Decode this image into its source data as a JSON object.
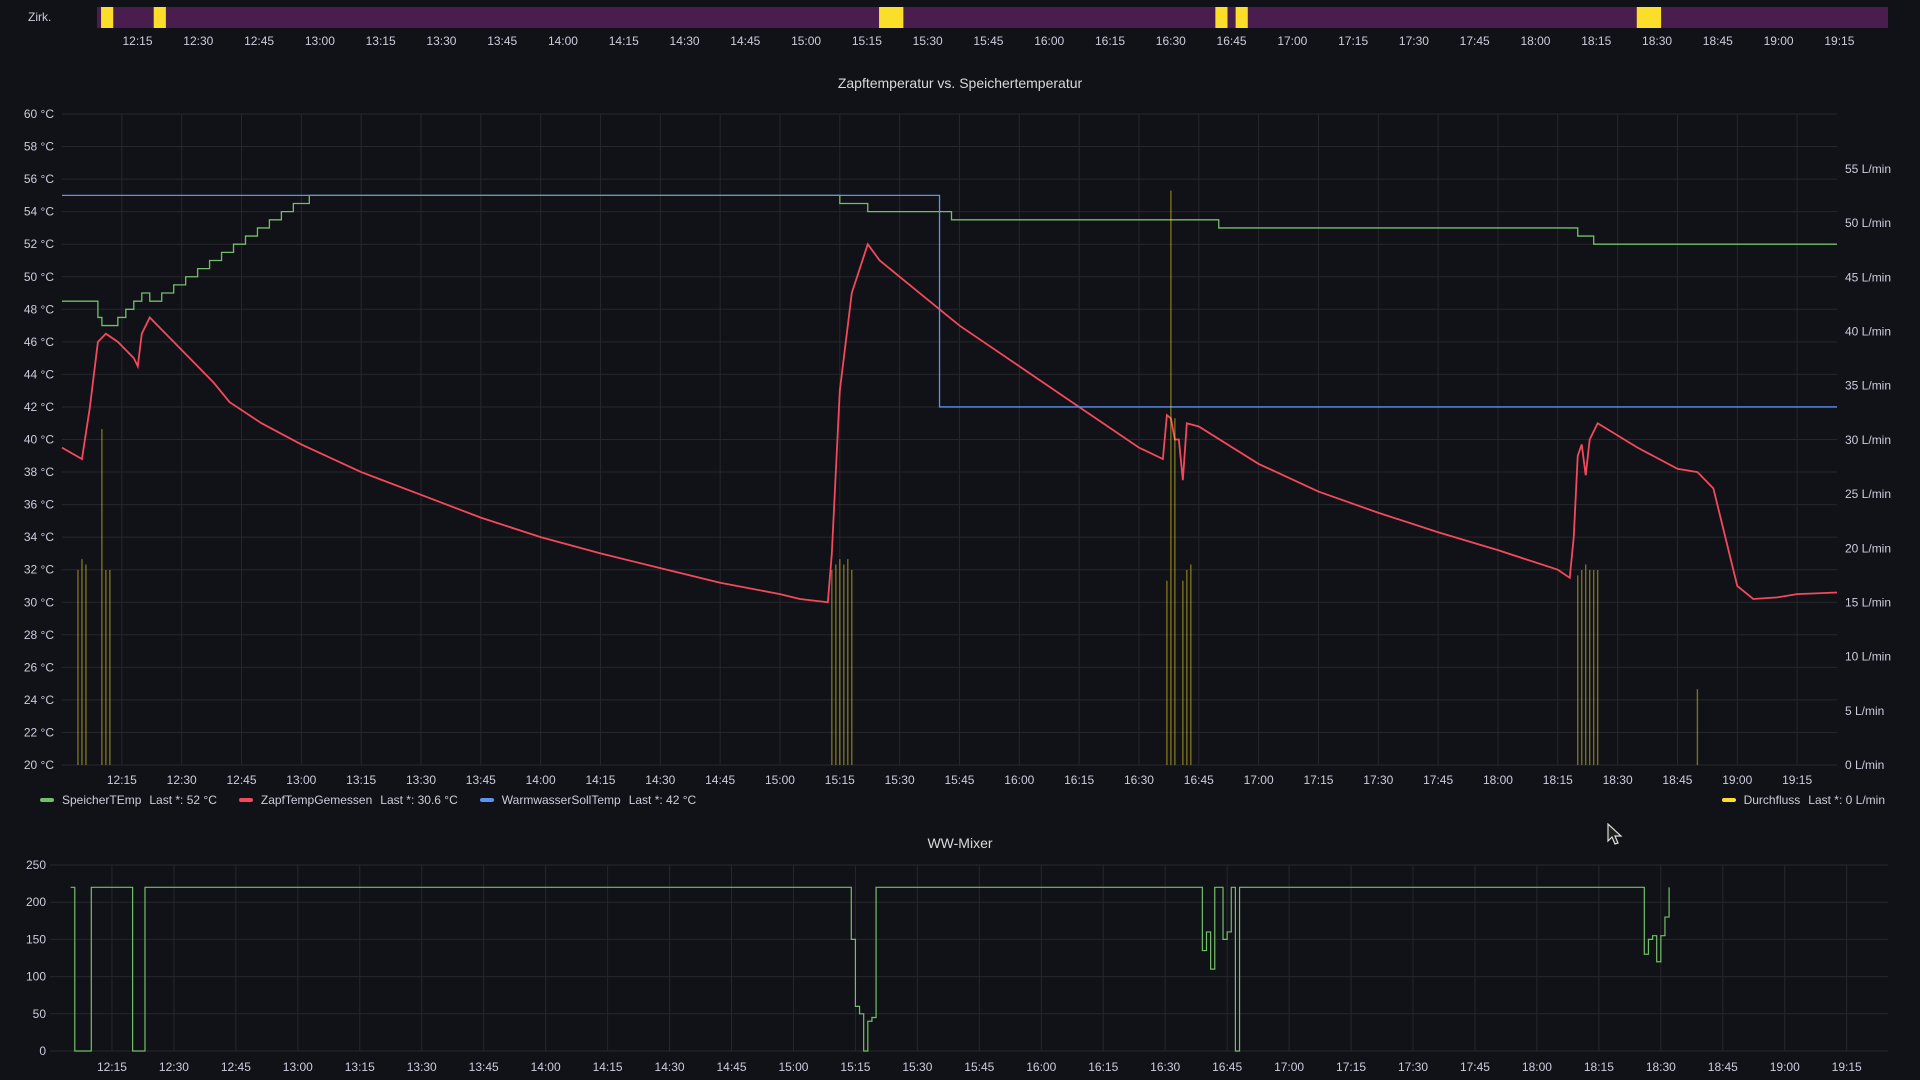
{
  "colors": {
    "background": "#111217",
    "grid": "#26272b",
    "axis_text": "#ccccdc",
    "green": "#73bf69",
    "red": "#f2495c",
    "blue": "#5794f2",
    "yellow": "#fade2a",
    "purple": "#4a1d4f"
  },
  "panels": {
    "state": {
      "label": "Zirk."
    },
    "temp": {
      "title": "Zapftemperatur vs. Speichertemperatur"
    },
    "mixer": {
      "title": "WW-Mixer"
    }
  },
  "legend": {
    "left": [
      {
        "name": "SpeicherTEmp",
        "last": "Last *: 52 °C",
        "color": "#73bf69"
      },
      {
        "name": "ZapfTempGemessen",
        "last": "Last *: 30.6 °C",
        "color": "#f2495c"
      },
      {
        "name": "WarmwasserSollTemp",
        "last": "Last *: 42 °C",
        "color": "#5794f2"
      }
    ],
    "right": {
      "name": "Durchfluss",
      "last": "Last *: 0 L/min",
      "color": "#fade2a"
    }
  },
  "chart_data": [
    {
      "type": "state-timeline",
      "label": "Zirk.",
      "x_ticks": [
        "12:15",
        "12:30",
        "12:45",
        "13:00",
        "13:15",
        "13:30",
        "13:45",
        "14:00",
        "14:15",
        "14:30",
        "14:45",
        "15:00",
        "15:15",
        "15:30",
        "15:45",
        "16:00",
        "16:15",
        "16:30",
        "16:45",
        "17:00",
        "17:15",
        "17:30",
        "17:45",
        "18:00",
        "18:15",
        "18:30",
        "18:45",
        "19:00",
        "19:15"
      ],
      "range": [
        "12:05",
        "19:27"
      ],
      "off_color": "#4a1d4f",
      "on_color": "#fade2a",
      "on_intervals": [
        [
          "12:06",
          "12:09"
        ],
        [
          "12:19",
          "12:22"
        ],
        [
          "15:18",
          "15:24"
        ],
        [
          "16:41",
          "16:44"
        ],
        [
          "16:46",
          "16:49"
        ],
        [
          "18:25",
          "18:31"
        ]
      ]
    },
    {
      "type": "line",
      "title": "Zapftemperatur vs. Speichertemperatur",
      "x_ticks": [
        "12:15",
        "12:30",
        "12:45",
        "13:00",
        "13:15",
        "13:30",
        "13:45",
        "14:00",
        "14:15",
        "14:30",
        "14:45",
        "15:00",
        "15:15",
        "15:30",
        "15:45",
        "16:00",
        "16:15",
        "16:30",
        "16:45",
        "17:00",
        "17:15",
        "17:30",
        "17:45",
        "18:00",
        "18:15",
        "18:30",
        "18:45",
        "19:00",
        "19:15"
      ],
      "x_range": [
        "12:00",
        "19:25"
      ],
      "y_left": {
        "min": 20,
        "max": 60,
        "step": 2,
        "unit": "°C"
      },
      "y_right": {
        "min": 0,
        "max": 55,
        "step": 5,
        "unit": "L/min"
      },
      "series": [
        {
          "name": "SpeicherTEmp",
          "color": "#73bf69",
          "axis": "left",
          "step": true,
          "points": [
            [
              "12:00",
              48.5
            ],
            [
              "12:08",
              48.5
            ],
            [
              "12:09",
              47.5
            ],
            [
              "12:10",
              47
            ],
            [
              "12:13",
              47
            ],
            [
              "12:14",
              47.5
            ],
            [
              "12:16",
              48
            ],
            [
              "12:18",
              48.5
            ],
            [
              "12:20",
              49
            ],
            [
              "12:22",
              48.5
            ],
            [
              "12:25",
              49
            ],
            [
              "12:28",
              49.5
            ],
            [
              "12:31",
              50
            ],
            [
              "12:34",
              50.5
            ],
            [
              "12:37",
              51
            ],
            [
              "12:40",
              51.5
            ],
            [
              "12:43",
              52
            ],
            [
              "12:46",
              52.5
            ],
            [
              "12:49",
              53
            ],
            [
              "12:52",
              53.5
            ],
            [
              "12:55",
              54
            ],
            [
              "12:58",
              54.5
            ],
            [
              "13:02",
              55
            ],
            [
              "15:14",
              55
            ],
            [
              "15:15",
              54.5
            ],
            [
              "15:22",
              54
            ],
            [
              "15:43",
              53.5
            ],
            [
              "16:50",
              53
            ],
            [
              "18:20",
              52.5
            ],
            [
              "18:24",
              52
            ],
            [
              "19:25",
              52
            ]
          ]
        },
        {
          "name": "ZapfTempGemessen",
          "color": "#f2495c",
          "axis": "left",
          "step": false,
          "points": [
            [
              "12:00",
              39.5
            ],
            [
              "12:05",
              38.8
            ],
            [
              "12:07",
              42
            ],
            [
              "12:09",
              46
            ],
            [
              "12:11",
              46.5
            ],
            [
              "12:14",
              46
            ],
            [
              "12:18",
              45
            ],
            [
              "12:19",
              44.5
            ],
            [
              "12:20",
              46.5
            ],
            [
              "12:22",
              47.5
            ],
            [
              "12:26",
              46.5
            ],
            [
              "12:32",
              45
            ],
            [
              "12:38",
              43.5
            ],
            [
              "12:42",
              42.3
            ],
            [
              "12:50",
              41
            ],
            [
              "13:00",
              39.7
            ],
            [
              "13:15",
              38
            ],
            [
              "13:30",
              36.6
            ],
            [
              "13:45",
              35.2
            ],
            [
              "14:00",
              34
            ],
            [
              "14:15",
              33
            ],
            [
              "14:30",
              32.1
            ],
            [
              "14:45",
              31.2
            ],
            [
              "15:00",
              30.5
            ],
            [
              "15:05",
              30.2
            ],
            [
              "15:12",
              30
            ],
            [
              "15:13",
              33
            ],
            [
              "15:15",
              43
            ],
            [
              "15:18",
              49
            ],
            [
              "15:22",
              52
            ],
            [
              "15:25",
              51
            ],
            [
              "15:35",
              49
            ],
            [
              "15:45",
              47
            ],
            [
              "16:00",
              44.5
            ],
            [
              "16:15",
              42
            ],
            [
              "16:30",
              39.5
            ],
            [
              "16:36",
              38.8
            ],
            [
              "16:37",
              41.5
            ],
            [
              "16:38",
              41.3
            ],
            [
              "16:39",
              40
            ],
            [
              "16:40",
              40
            ],
            [
              "16:41",
              37.5
            ],
            [
              "16:42",
              41
            ],
            [
              "16:45",
              40.8
            ],
            [
              "17:00",
              38.5
            ],
            [
              "17:15",
              36.8
            ],
            [
              "17:30",
              35.5
            ],
            [
              "17:45",
              34.3
            ],
            [
              "18:00",
              33.2
            ],
            [
              "18:15",
              32
            ],
            [
              "18:18",
              31.5
            ],
            [
              "18:19",
              34
            ],
            [
              "18:20",
              39
            ],
            [
              "18:21",
              39.7
            ],
            [
              "18:22",
              37.8
            ],
            [
              "18:23",
              40
            ],
            [
              "18:25",
              41
            ],
            [
              "18:35",
              39.5
            ],
            [
              "18:45",
              38.2
            ],
            [
              "18:50",
              38
            ],
            [
              "18:54",
              37
            ],
            [
              "18:57",
              34
            ],
            [
              "19:00",
              31
            ],
            [
              "19:04",
              30.2
            ],
            [
              "19:10",
              30.3
            ],
            [
              "19:15",
              30.5
            ],
            [
              "19:25",
              30.6
            ]
          ]
        },
        {
          "name": "WarmwasserSollTemp",
          "color": "#5794f2",
          "axis": "left",
          "step": true,
          "points": [
            [
              "12:00",
              55
            ],
            [
              "15:40",
              55
            ],
            [
              "15:40",
              42
            ],
            [
              "19:25",
              42
            ]
          ]
        },
        {
          "name": "Durchfluss",
          "color": "#fade2a",
          "axis": "right",
          "type": "bars",
          "points": [
            [
              "12:04",
              18
            ],
            [
              "12:05",
              19
            ],
            [
              "12:06",
              18.5
            ],
            [
              "12:10",
              31
            ],
            [
              "12:11",
              18
            ],
            [
              "12:12",
              18
            ],
            [
              "15:13",
              18
            ],
            [
              "15:14",
              18.5
            ],
            [
              "15:15",
              19
            ],
            [
              "15:16",
              18.5
            ],
            [
              "15:17",
              19
            ],
            [
              "15:18",
              18
            ],
            [
              "16:37",
              17
            ],
            [
              "16:38",
              53
            ],
            [
              "16:39",
              32
            ],
            [
              "16:41",
              17
            ],
            [
              "16:42",
              18
            ],
            [
              "16:43",
              18.5
            ],
            [
              "18:20",
              17.5
            ],
            [
              "18:21",
              18
            ],
            [
              "18:22",
              18.5
            ],
            [
              "18:23",
              18
            ],
            [
              "18:24",
              18
            ],
            [
              "18:25",
              18
            ],
            [
              "18:50",
              7
            ]
          ]
        }
      ]
    },
    {
      "type": "line",
      "title": "WW-Mixer",
      "x_ticks": [
        "12:15",
        "12:30",
        "12:45",
        "13:00",
        "13:15",
        "13:30",
        "13:45",
        "14:00",
        "14:15",
        "14:30",
        "14:45",
        "15:00",
        "15:15",
        "15:30",
        "15:45",
        "16:00",
        "16:15",
        "16:30",
        "16:45",
        "17:00",
        "17:15",
        "17:30",
        "17:45",
        "18:00",
        "18:15",
        "18:30",
        "18:45",
        "19:00",
        "19:15"
      ],
      "x_range": [
        "12:00",
        "19:25"
      ],
      "y": {
        "min": 0,
        "max": 250,
        "step": 50
      },
      "series": [
        {
          "name": "",
          "color": "#73bf69",
          "step": true,
          "points": [
            [
              "12:05",
              220
            ],
            [
              "12:06",
              0
            ],
            [
              "12:09",
              0
            ],
            [
              "12:10",
              220
            ],
            [
              "12:19",
              220
            ],
            [
              "12:20",
              0
            ],
            [
              "12:22",
              0
            ],
            [
              "12:23",
              220
            ],
            [
              "15:13",
              220
            ],
            [
              "15:14",
              150
            ],
            [
              "15:15",
              60
            ],
            [
              "15:16",
              50
            ],
            [
              "15:17",
              0
            ],
            [
              "15:18",
              40
            ],
            [
              "15:19",
              45
            ],
            [
              "15:20",
              220
            ],
            [
              "16:38",
              220
            ],
            [
              "16:39",
              135
            ],
            [
              "16:40",
              160
            ],
            [
              "16:41",
              110
            ],
            [
              "16:42",
              220
            ],
            [
              "16:43",
              220
            ],
            [
              "16:44",
              150
            ],
            [
              "16:45",
              160
            ],
            [
              "16:46",
              220
            ],
            [
              "16:47",
              0
            ],
            [
              "16:48",
              220
            ],
            [
              "18:25",
              220
            ],
            [
              "18:26",
              130
            ],
            [
              "18:27",
              150
            ],
            [
              "18:28",
              155
            ],
            [
              "18:29",
              120
            ],
            [
              "18:30",
              155
            ],
            [
              "18:31",
              180
            ],
            [
              "18:32",
              220
            ]
          ]
        }
      ]
    }
  ]
}
